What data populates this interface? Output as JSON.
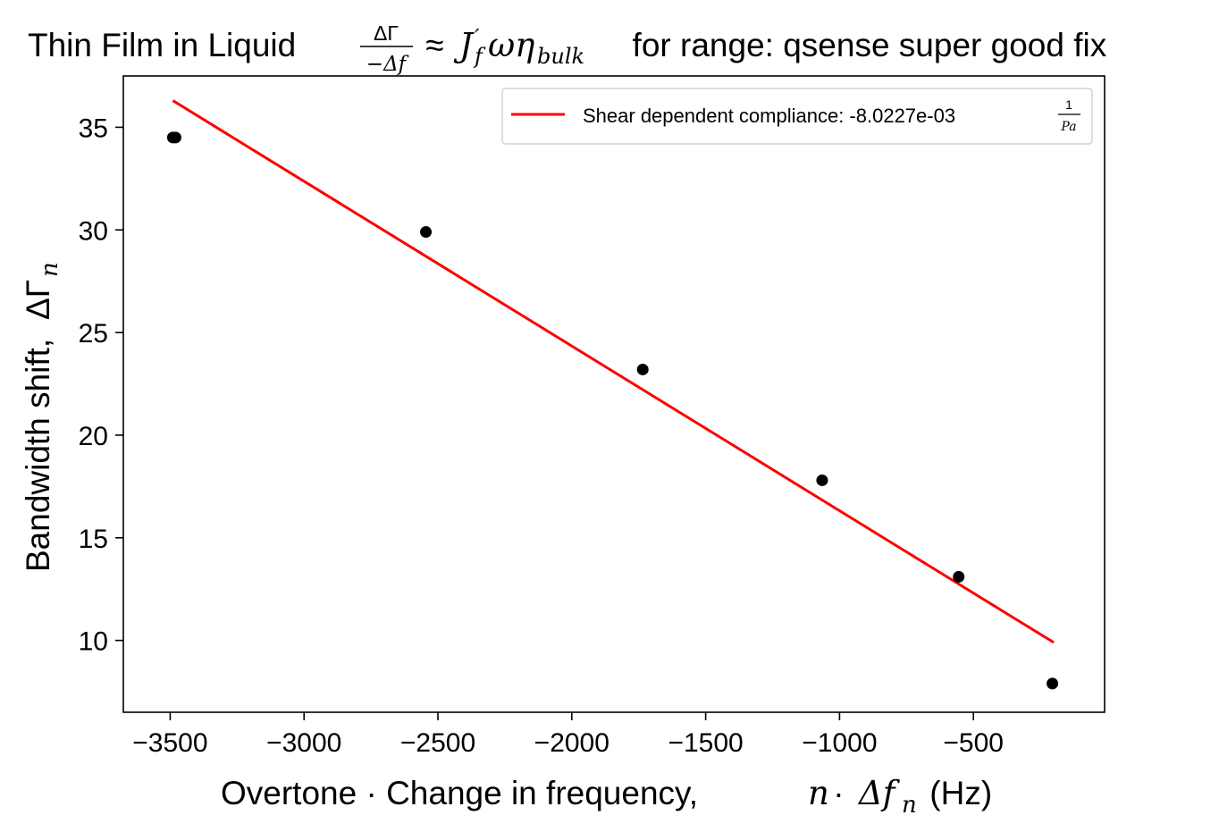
{
  "chart_data": {
    "type": "scatter",
    "title": {
      "prefix": "Thin Film in Liquid ",
      "frac_num": "ΔΓ",
      "frac_den": "−Δf",
      "approx": " ≈ ",
      "formula_J": "J",
      "formula_prime": "′",
      "formula_f": "f",
      "formula_omega_eta": "ωη",
      "formula_sub": "bulk",
      "suffix": "  for range: qsense super good fix"
    },
    "xlabel": {
      "text": "Overtone · Change in frequency, ",
      "n": "n",
      "dot": " · ",
      "delta_f": "Δf",
      "sub": "n",
      "unit": " (Hz)"
    },
    "ylabel": {
      "text": "Bandwidth shift, ",
      "delta_gamma": "ΔΓ",
      "sub": "n"
    },
    "xlim": [
      -3675,
      -10
    ],
    "ylim": [
      6.5,
      37.5
    ],
    "xticks": [
      -3500,
      -3000,
      -2500,
      -2000,
      -1500,
      -1000,
      -500
    ],
    "xtick_labels": [
      "−3500",
      "−3000",
      "−2500",
      "−2000",
      "−1500",
      "−1000",
      "−500"
    ],
    "yticks": [
      10,
      15,
      20,
      25,
      30,
      35
    ],
    "ytick_labels": [
      "10",
      "15",
      "20",
      "25",
      "30",
      "35"
    ],
    "grid": false,
    "legend_position": "top-right",
    "series": [
      {
        "kind": "points",
        "color": "#000000",
        "x": [
          -3490,
          -3480,
          -2545,
          -1735,
          -1065,
          -555,
          -205
        ],
        "y": [
          34.5,
          34.5,
          29.9,
          23.2,
          17.8,
          13.1,
          7.9
        ]
      },
      {
        "kind": "line",
        "name": "Shear dependent compliance: -8.0227e-03 ",
        "name_frac_num": "1",
        "name_frac_den": "Pa",
        "color": "#ff0000",
        "x": [
          -3490,
          -200
        ],
        "y": [
          36.3,
          9.9
        ]
      }
    ]
  }
}
